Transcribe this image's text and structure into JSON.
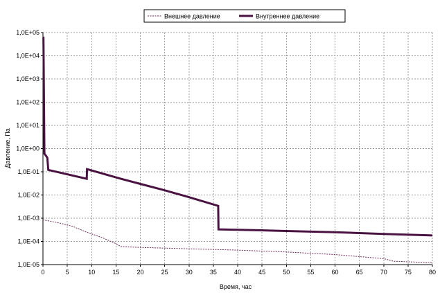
{
  "chart_data": {
    "type": "line",
    "title": "",
    "xlabel": "Время, час",
    "ylabel": "Давление, Па",
    "x_ticks": [
      0,
      5,
      10,
      15,
      20,
      25,
      30,
      35,
      40,
      45,
      50,
      55,
      60,
      65,
      70,
      75,
      80
    ],
    "x_tick_labels": [
      "0",
      "5",
      "10",
      "15",
      "20",
      "25",
      "30",
      "35",
      "40",
      "45",
      "50",
      "55",
      "60",
      "65",
      "70",
      "75",
      "80"
    ],
    "xlim": [
      0,
      80
    ],
    "y_scale": "log",
    "y_ticks": [
      1e-05,
      0.0001,
      0.001,
      0.01,
      0.1,
      1,
      10,
      100,
      1000,
      10000,
      100000
    ],
    "y_tick_labels": [
      "1,0E-05",
      "1,0E-04",
      "1,0E-03",
      "1,0E-02",
      "1,0E-01",
      "1,0E+00",
      "1,0E+01",
      "1,0E+02",
      "1,0E+03",
      "1,0E+04",
      "1,0E+05"
    ],
    "ylim": [
      1e-05,
      100000
    ],
    "grid": true,
    "legend_position": "top-right",
    "series": [
      {
        "name": "Внешнее давление",
        "style": "dashed",
        "color": "#6e2a55",
        "x": [
          0,
          3,
          6,
          9,
          12,
          15,
          16,
          20,
          30,
          40,
          50,
          60,
          70,
          72,
          80
        ],
        "y": [
          0.00085,
          0.00065,
          0.00045,
          0.00025,
          0.00015,
          8e-05,
          6e-05,
          5.5e-05,
          4.8e-05,
          4.2e-05,
          3.5e-05,
          2.7e-05,
          1.8e-05,
          1.4e-05,
          1.2e-05
        ]
      },
      {
        "name": "Внутреннее давление",
        "style": "solid",
        "color": "#4a1240",
        "x": [
          0,
          0.1,
          0.3,
          0.6,
          0.9,
          1.1,
          9,
          9.05,
          16,
          20,
          25,
          30,
          36,
          36.05,
          45,
          50,
          60,
          70,
          80
        ],
        "y": [
          60000,
          60000,
          0.6,
          0.5,
          0.4,
          0.12,
          0.05,
          0.13,
          0.05,
          0.03,
          0.016,
          0.008,
          0.0034,
          0.00033,
          0.0003,
          0.00028,
          0.00025,
          0.00021,
          0.00018
        ]
      }
    ]
  }
}
